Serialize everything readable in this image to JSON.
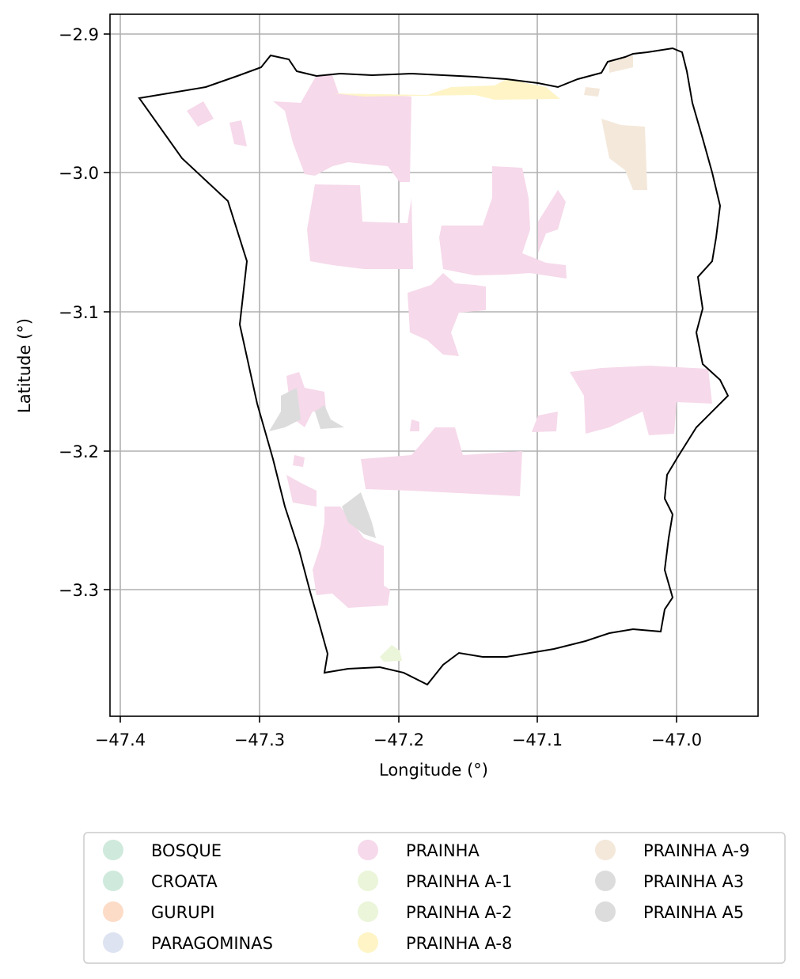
{
  "map": {
    "xlabel": "Longitude (°)",
    "ylabel": "Latitude (°)",
    "grid": true,
    "xticks": [
      "−47.4",
      "−47.3",
      "−47.2",
      "−47.1",
      "−47.0"
    ],
    "yticks": [
      "−2.9",
      "−3.0",
      "−3.1",
      "−3.2",
      "−3.3"
    ],
    "xlim": [
      -47.407,
      -46.943
    ],
    "ylim": [
      -3.393,
      -2.885
    ],
    "boundary_color": "#000000"
  },
  "legend": {
    "placement": "bottom-center",
    "items": [
      {
        "label": "BOSQUE",
        "color": "#cfeadc"
      },
      {
        "label": "CROATA",
        "color": "#cfeadc"
      },
      {
        "label": "GURUPI",
        "color": "#fcdcc7"
      },
      {
        "label": "PARAGOMINAS",
        "color": "#dde3f1"
      },
      {
        "label": "PRAINHA",
        "color": "#f6d9ea"
      },
      {
        "label": "PRAINHA A-1",
        "color": "#ebf5d9"
      },
      {
        "label": "PRAINHA A-2",
        "color": "#ebf5d9"
      },
      {
        "label": "PRAINHA A-8",
        "color": "#fef4c6"
      },
      {
        "label": "PRAINHA A-9",
        "color": "#f4e8da"
      },
      {
        "label": "PRAINHA A3",
        "color": "#dcdcdc"
      },
      {
        "label": "PRAINHA A5",
        "color": "#dcdcdc"
      }
    ]
  }
}
